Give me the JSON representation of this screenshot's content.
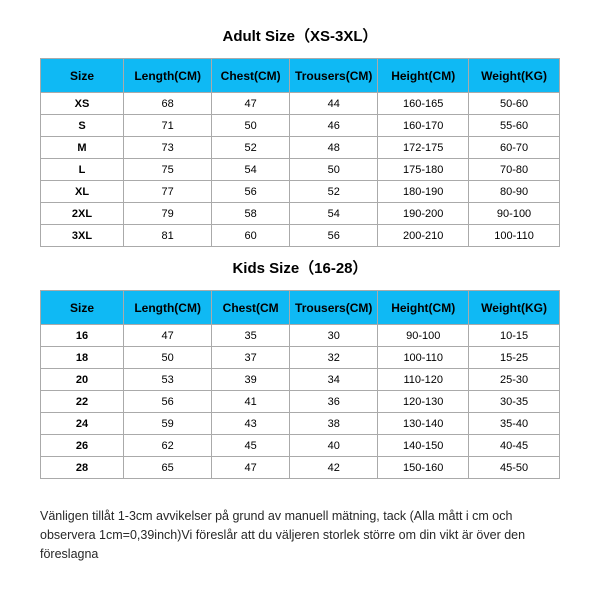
{
  "header_bg": "#0fb9f4",
  "adult": {
    "title": "Adult Size（XS-3XL）",
    "columns": [
      "Size",
      "Length(CM)",
      "Chest(CM)",
      "Trousers(CM)",
      "Height(CM)",
      "Weight(KG)"
    ],
    "rows": [
      [
        "XS",
        "68",
        "47",
        "44",
        "160-165",
        "50-60"
      ],
      [
        "S",
        "71",
        "50",
        "46",
        "160-170",
        "55-60"
      ],
      [
        "M",
        "73",
        "52",
        "48",
        "172-175",
        "60-70"
      ],
      [
        "L",
        "75",
        "54",
        "50",
        "175-180",
        "70-80"
      ],
      [
        "XL",
        "77",
        "56",
        "52",
        "180-190",
        "80-90"
      ],
      [
        "2XL",
        "79",
        "58",
        "54",
        "190-200",
        "90-100"
      ],
      [
        "3XL",
        "81",
        "60",
        "56",
        "200-210",
        "100-110"
      ]
    ]
  },
  "kids": {
    "title": "Kids Size（16-28）",
    "columns": [
      "Size",
      "Length(CM)",
      "Chest(CM",
      "Trousers(CM)",
      "Height(CM)",
      "Weight(KG)"
    ],
    "rows": [
      [
        "16",
        "47",
        "35",
        "30",
        "90-100",
        "10-15"
      ],
      [
        "18",
        "50",
        "37",
        "32",
        "100-110",
        "15-25"
      ],
      [
        "20",
        "53",
        "39",
        "34",
        "110-120",
        "25-30"
      ],
      [
        "22",
        "56",
        "41",
        "36",
        "120-130",
        "30-35"
      ],
      [
        "24",
        "59",
        "43",
        "38",
        "130-140",
        "35-40"
      ],
      [
        "26",
        "62",
        "45",
        "40",
        "140-150",
        "40-45"
      ],
      [
        "28",
        "65",
        "47",
        "42",
        "150-160",
        "45-50"
      ]
    ]
  },
  "note": "Vänligen tillåt 1-3cm avvikelser på grund av manuell mätning, tack (Alla mått i cm och observera 1cm=0,39inch)Vi föreslår att du väljeren storlek större om din vikt är över den föreslagna"
}
